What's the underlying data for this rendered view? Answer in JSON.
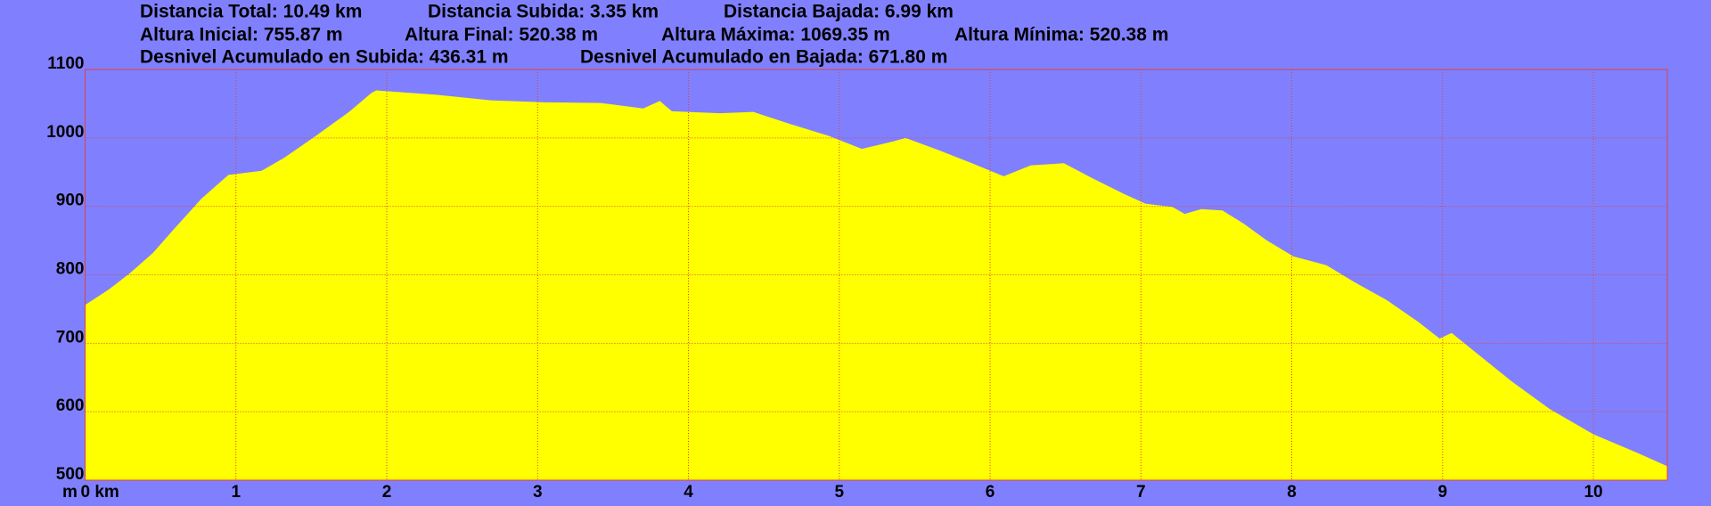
{
  "chart_data": {
    "type": "area",
    "annotations": [
      "Distancia Total: 10.49 km",
      "Distancia Subida: 3.35 km",
      "Distancia Bajada: 6.99 km",
      "Altura Inicial: 755.87 m",
      "Altura Final: 520.38 m",
      "Altura Máxima: 1069.35 m",
      "Altura Mínima: 520.38 m",
      "Desnivel Acumulado en Subida: 436.31 m",
      "Desnivel Acumulado en Bajada: 671.80 m"
    ],
    "y_label": "m",
    "x": [
      0,
      0.16,
      0.3,
      0.45,
      0.59,
      0.77,
      0.95,
      1.17,
      1.32,
      1.53,
      1.75,
      1.9,
      1.93,
      2.33,
      2.69,
      3.05,
      3.42,
      3.7,
      3.81,
      3.89,
      4.21,
      4.43,
      4.65,
      4.93,
      5.15,
      5.36,
      5.44,
      5.66,
      5.88,
      6.09,
      6.27,
      6.49,
      6.67,
      6.89,
      7.03,
      7.21,
      7.29,
      7.4,
      7.54,
      7.68,
      7.83,
      8.01,
      8.23,
      8.41,
      8.63,
      8.84,
      8.98,
      9.06,
      9.24,
      9.46,
      9.71,
      10.0,
      10.29,
      10.49
    ],
    "series": [
      {
        "color": "#ffff00",
        "values": [
          755.87,
          779,
          803,
          832,
          867,
          911,
          946,
          952,
          971,
          1003,
          1038,
          1066,
          1069.35,
          1063,
          1055,
          1052,
          1051,
          1043,
          1054,
          1039,
          1036,
          1038,
          1022,
          1003,
          984,
          995,
          1000,
          982,
          963,
          944,
          960,
          963,
          942,
          918,
          904,
          899,
          889,
          896,
          894,
          875,
          851,
          827,
          814,
          790,
          763,
          731,
          707,
          715,
          683,
          644,
          604,
          567,
          540,
          520.38
        ]
      }
    ],
    "xlim": [
      0,
      10.49
    ],
    "xticks": [
      {
        "value": 0,
        "label": "0 km"
      },
      1,
      2,
      3,
      4,
      5,
      6,
      7,
      8,
      9,
      10
    ],
    "ylim": [
      500,
      1100
    ],
    "yticks": [
      500,
      600,
      700,
      800,
      900,
      1000,
      1100
    ],
    "grid": true
  }
}
